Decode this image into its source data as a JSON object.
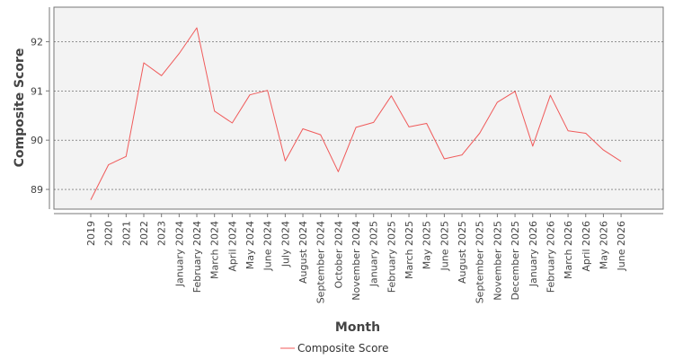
{
  "chart_data": {
    "type": "line",
    "title": "",
    "xlabel": "Month",
    "ylabel": "Composite Score",
    "categories": [
      "2019",
      "2020",
      "2021",
      "2022",
      "2023",
      "January 2024",
      "February 2024",
      "March 2024",
      "April 2024",
      "May 2024",
      "June 2024",
      "July 2024",
      "August 2024",
      "September 2024",
      "October 2024",
      "November 2024",
      "January 2025",
      "February 2025",
      "March 2025",
      "May 2025",
      "June 2025",
      "August 2025",
      "September 2025",
      "November 2025",
      "December 2025",
      "January 2026",
      "February 2026",
      "March 2026",
      "April 2026",
      "May 2026",
      "June 2026"
    ],
    "series": [
      {
        "name": "Composite Score",
        "color": "#f05a5a",
        "values": [
          88.79,
          89.5,
          89.67,
          91.57,
          91.31,
          91.76,
          92.28,
          90.59,
          90.35,
          90.92,
          91.01,
          89.58,
          90.23,
          90.11,
          89.36,
          90.26,
          90.36,
          90.9,
          90.27,
          90.34,
          89.62,
          89.7,
          90.14,
          90.77,
          90.99,
          89.88,
          90.91,
          90.19,
          90.14,
          89.8,
          89.57
        ]
      }
    ],
    "yticks": [
      89,
      90,
      91,
      92
    ],
    "ylim": [
      88.6,
      92.7
    ],
    "grid": "horizontal dashed",
    "legend_position": "bottom-center",
    "colors": {
      "plot_bg": "#f3f3f3",
      "grid": "#555555",
      "axis": "#777777",
      "line": "#f05a5a"
    }
  }
}
